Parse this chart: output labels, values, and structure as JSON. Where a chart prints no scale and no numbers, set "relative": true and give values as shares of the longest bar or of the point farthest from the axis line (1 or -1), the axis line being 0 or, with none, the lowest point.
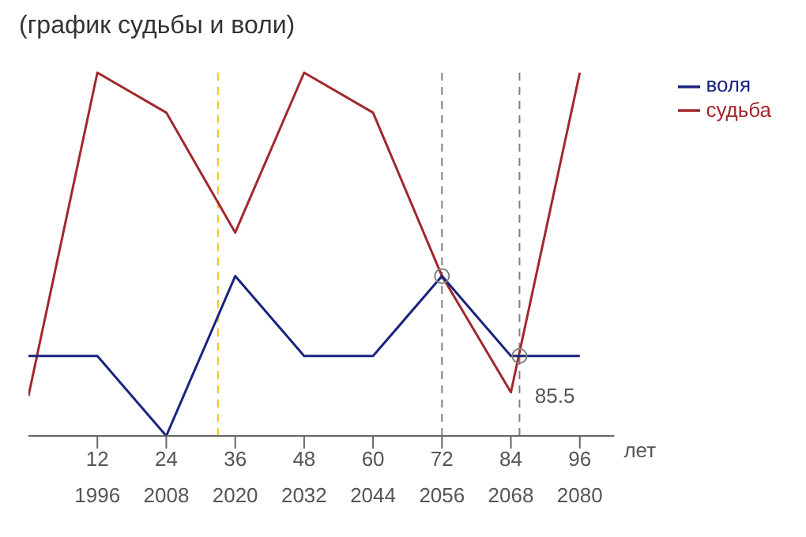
{
  "chart_data": {
    "type": "line",
    "title": "(график судьбы и воли)",
    "xlabel": "лет",
    "relative": true,
    "x": [
      0,
      12,
      24,
      36,
      48,
      60,
      72,
      84,
      96
    ],
    "xlim": [
      0,
      102
    ],
    "xticks": [
      12,
      24,
      36,
      48,
      60,
      72,
      84,
      96
    ],
    "x2lim": [
      1984,
      2086
    ],
    "x2ticks": [
      1996,
      2008,
      2020,
      2032,
      2044,
      2056,
      2068,
      2080
    ],
    "series": [
      {
        "name": "судьба",
        "color": "#a0282d",
        "values": [
          0.11,
          1,
          0.89,
          0.56,
          1,
          0.89,
          0.44,
          0.12,
          1
        ]
      },
      {
        "name": "воля",
        "color": "#1a237e",
        "values": [
          0.22,
          0.22,
          0,
          0.44,
          0.22,
          0.22,
          0.44,
          0.22,
          0.22
        ]
      },
      {
        "type": "scatter",
        "color": "#808080",
        "x": [
          72,
          85.5
        ],
        "values": [
          0.44,
          0.22
        ],
        "marker": "circle"
      }
    ],
    "ref_lines": [
      {
        "axis": "x",
        "value": 33,
        "label": null,
        "color": "#f0c419",
        "line_style": "dashed"
      },
      {
        "axis": "x",
        "value": 72,
        "label": null,
        "color": "#808080",
        "line_style": "dashed"
      },
      {
        "axis": "x",
        "value": 85.5,
        "label": "85.5",
        "color": "#808080",
        "line_style": "dashed"
      }
    ],
    "legend": "top right",
    "marker": "none",
    "line_style": "solid"
  }
}
